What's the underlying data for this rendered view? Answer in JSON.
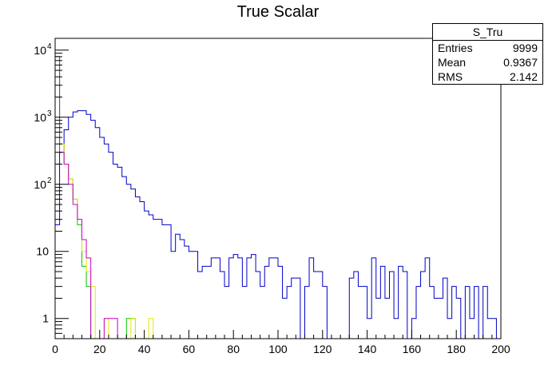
{
  "chart_data": {
    "type": "line",
    "title": "True Scalar",
    "xlabel": "",
    "ylabel": "",
    "xlim": [
      0,
      200
    ],
    "ylim": [
      0.5,
      15000
    ],
    "yscale": "log",
    "xticks": [
      "0",
      "20",
      "40",
      "60",
      "80",
      "100",
      "120",
      "140",
      "160",
      "180",
      "200"
    ],
    "yticks": [
      {
        "value": 1,
        "label": "1"
      },
      {
        "value": 10,
        "label": "10"
      },
      {
        "value": 100,
        "label": "10",
        "exp": "2"
      },
      {
        "value": 1000,
        "label": "10",
        "exp": "3"
      },
      {
        "value": 10000,
        "label": "10",
        "exp": "4"
      }
    ],
    "bin_width": 2,
    "stats_box": {
      "name": "S_Tru",
      "rows": [
        {
          "label": "Entries",
          "value": "9999"
        },
        {
          "label": "Mean",
          "value": "0.9367"
        },
        {
          "label": "RMS",
          "value": "2.142"
        }
      ]
    },
    "series": [
      {
        "color": "#0000c8",
        "values": [
          25,
          300,
          650,
          1000,
          1200,
          1250,
          1250,
          1100,
          900,
          700,
          500,
          400,
          300,
          200,
          180,
          130,
          100,
          85,
          65,
          55,
          40,
          35,
          30,
          30,
          25,
          25,
          10,
          18,
          15,
          12,
          10,
          10,
          5,
          6,
          6,
          8,
          8,
          5,
          3,
          8,
          9,
          8,
          3,
          8,
          9,
          5,
          3,
          6,
          8,
          8,
          6,
          2,
          3,
          4,
          4,
          0,
          3,
          8,
          5,
          5,
          3,
          0,
          0,
          0,
          0,
          0,
          4,
          5,
          3,
          3,
          1,
          8,
          2,
          6,
          2,
          5,
          1,
          6,
          5,
          0,
          1,
          3,
          5,
          8,
          3,
          2,
          2,
          4,
          1,
          3,
          2,
          0,
          3,
          1,
          3,
          0,
          3,
          1,
          1,
          0
        ]
      },
      {
        "color": "#00c800",
        "values": [
          8000,
          400,
          200,
          120,
          60,
          25,
          6,
          3,
          0,
          0,
          0,
          0,
          0,
          0,
          0,
          0,
          1,
          1
        ]
      },
      {
        "color": "#e6e600",
        "values": [
          8000,
          400,
          200,
          120,
          60,
          30,
          10,
          5,
          3,
          0,
          0,
          1,
          0,
          0,
          0,
          0,
          0,
          1,
          0,
          0,
          0,
          1
        ]
      },
      {
        "color": "#c800c8",
        "values": [
          8000,
          300,
          200,
          100,
          50,
          30,
          15,
          8,
          0,
          0,
          0,
          1,
          1,
          1,
          0,
          0
        ]
      }
    ]
  }
}
